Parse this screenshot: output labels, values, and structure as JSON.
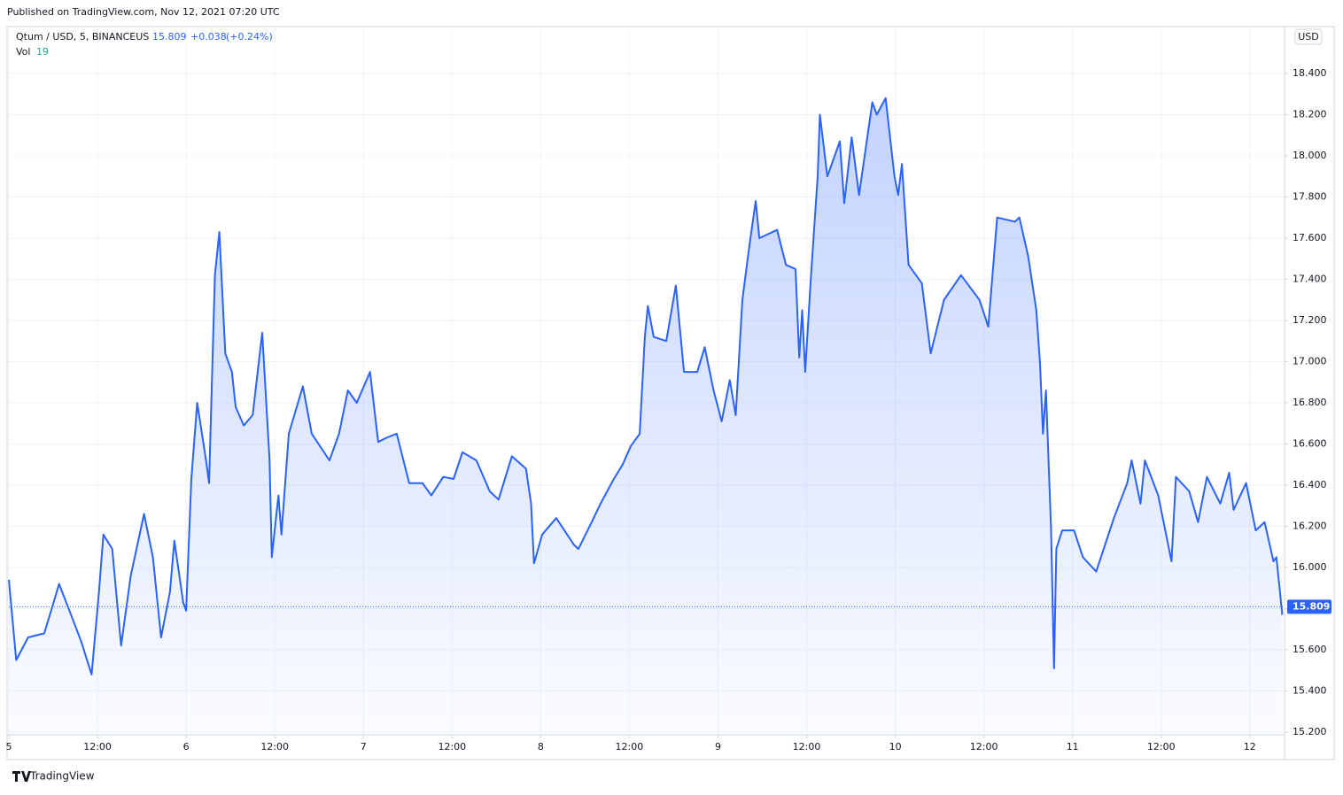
{
  "header": {
    "published": "Published on TradingView.com, Nov 12, 2021 07:20 UTC",
    "footer_brand": "TradingView"
  },
  "chart_data": {
    "type": "area",
    "symbol": "Qtum / USD, 5, BINANCEUS",
    "last_price": 15.809,
    "change": "+0.038",
    "change_pct": "(+0.24%)",
    "volume_label": "Vol",
    "volume": 19,
    "currency": "USD",
    "grid": true,
    "xlim": [
      0,
      172.7
    ],
    "xticks": [
      {
        "value": 0,
        "label": "5"
      },
      {
        "value": 12,
        "label": "12:00"
      },
      {
        "value": 24,
        "label": "6"
      },
      {
        "value": 36,
        "label": "12:00"
      },
      {
        "value": 48,
        "label": "7"
      },
      {
        "value": 60,
        "label": "12:00"
      },
      {
        "value": 72,
        "label": "8"
      },
      {
        "value": 84,
        "label": "12:00"
      },
      {
        "value": 96,
        "label": "9"
      },
      {
        "value": 108,
        "label": "12:00"
      },
      {
        "value": 120,
        "label": "10"
      },
      {
        "value": 132,
        "label": "12:00"
      },
      {
        "value": 144,
        "label": "11"
      },
      {
        "value": 156,
        "label": "12:00"
      },
      {
        "value": 168,
        "label": "12"
      }
    ],
    "ylim": [
      15.187,
      18.615
    ],
    "yticks": [
      {
        "value": 15.2,
        "label": "15.200"
      },
      {
        "value": 15.4,
        "label": "15.400"
      },
      {
        "value": 15.6,
        "label": "15.600"
      },
      {
        "value": 15.8,
        "label": "15.800"
      },
      {
        "value": 16.0,
        "label": "16.000"
      },
      {
        "value": 16.2,
        "label": "16.200"
      },
      {
        "value": 16.4,
        "label": "16.400"
      },
      {
        "value": 16.6,
        "label": "16.600"
      },
      {
        "value": 16.8,
        "label": "16.800"
      },
      {
        "value": 17.0,
        "label": "17.000"
      },
      {
        "value": 17.2,
        "label": "17.200"
      },
      {
        "value": 17.4,
        "label": "17.400"
      },
      {
        "value": 17.6,
        "label": "17.600"
      },
      {
        "value": 17.8,
        "label": "17.800"
      },
      {
        "value": 18.0,
        "label": "18.000"
      },
      {
        "value": 18.2,
        "label": "18.200"
      },
      {
        "value": 18.4,
        "label": "18.400"
      }
    ],
    "series": [
      {
        "name": "Qtum / USD",
        "color": "#2962ff",
        "x": [
          0,
          1.0,
          2.6,
          4.8,
          6.8,
          8.2,
          9.8,
          11.2,
          12.2,
          12.8,
          14.0,
          15.2,
          16.5,
          18.3,
          19.5,
          20.6,
          21.8,
          22.4,
          23.6,
          24.0,
          24.7,
          25.5,
          26.7,
          27.1,
          27.9,
          28.5,
          29.3,
          30.2,
          30.7,
          31.8,
          33.0,
          34.3,
          35.3,
          35.6,
          36.5,
          36.9,
          37.9,
          39.8,
          41.0,
          43.4,
          44.7,
          45.9,
          47.1,
          48.9,
          50.0,
          51.1,
          52.5,
          54.2,
          56.0,
          57.2,
          58.8,
          60.2,
          61.4,
          63.3,
          65.1,
          66.3,
          68.1,
          70.0,
          70.7,
          71.1,
          72.2,
          74.1,
          76.5,
          77.1,
          78.9,
          80.1,
          81.9,
          83.1,
          84.2,
          85.4,
          86.1,
          86.5,
          87.3,
          89.0,
          90.3,
          91.4,
          93.2,
          94.2,
          95.4,
          96.5,
          97.6,
          98.4,
          99.3,
          100.2,
          101.1,
          101.6,
          104.0,
          105.2,
          106.5,
          107.0,
          107.4,
          107.8,
          108.6,
          109.5,
          109.8,
          110.8,
          112.5,
          113.1,
          114.1,
          115.1,
          116.9,
          117.5,
          118.7,
          119.9,
          120.4,
          120.9,
          121.8,
          123.6,
          124.8,
          126.6,
          128.9,
          131.4,
          132.6,
          133.8,
          136.2,
          136.8,
          138.0,
          139.1,
          139.6,
          140.0,
          140.4,
          141.1,
          141.5,
          141.8,
          142.6,
          144.2,
          145.4,
          147.2,
          149.6,
          151.4,
          152.0,
          153.2,
          153.8,
          155.6,
          157.4,
          158.0,
          159.8,
          161.0,
          162.2,
          164.0,
          165.2,
          165.8,
          167.5,
          168.8,
          170.0,
          171.2,
          171.6,
          172.4
        ],
        "values": [
          15.94,
          15.55,
          15.66,
          15.68,
          15.92,
          15.79,
          15.64,
          15.48,
          15.88,
          16.16,
          16.09,
          15.62,
          15.96,
          16.26,
          16.05,
          15.66,
          15.88,
          16.13,
          15.83,
          15.79,
          16.43,
          16.8,
          16.52,
          16.41,
          17.42,
          17.63,
          17.04,
          16.95,
          16.78,
          16.69,
          16.74,
          17.14,
          16.52,
          16.05,
          16.35,
          16.16,
          16.65,
          16.88,
          16.65,
          16.52,
          16.65,
          16.86,
          16.8,
          16.95,
          16.61,
          16.63,
          16.65,
          16.41,
          16.41,
          16.35,
          16.44,
          16.43,
          16.56,
          16.52,
          16.37,
          16.33,
          16.54,
          16.48,
          16.31,
          16.02,
          16.16,
          16.24,
          16.11,
          16.09,
          16.22,
          16.31,
          16.43,
          16.5,
          16.59,
          16.65,
          17.12,
          17.27,
          17.12,
          17.1,
          17.37,
          16.95,
          16.95,
          17.07,
          16.86,
          16.71,
          16.91,
          16.74,
          17.3,
          17.55,
          17.78,
          17.6,
          17.64,
          17.47,
          17.45,
          17.02,
          17.25,
          16.95,
          17.42,
          17.9,
          18.2,
          17.9,
          18.07,
          17.77,
          18.09,
          17.81,
          18.26,
          18.2,
          18.28,
          17.9,
          17.81,
          17.96,
          17.47,
          17.38,
          17.04,
          17.3,
          17.42,
          17.3,
          17.17,
          17.7,
          17.68,
          17.7,
          17.51,
          17.25,
          16.99,
          16.65,
          16.86,
          16.18,
          15.51,
          16.09,
          16.18,
          16.18,
          16.05,
          15.98,
          16.24,
          16.41,
          16.52,
          16.31,
          16.52,
          16.35,
          16.03,
          16.44,
          16.37,
          16.22,
          16.44,
          16.31,
          16.46,
          16.28,
          16.41,
          16.18,
          16.22,
          16.03,
          16.05,
          15.77
        ]
      }
    ]
  }
}
